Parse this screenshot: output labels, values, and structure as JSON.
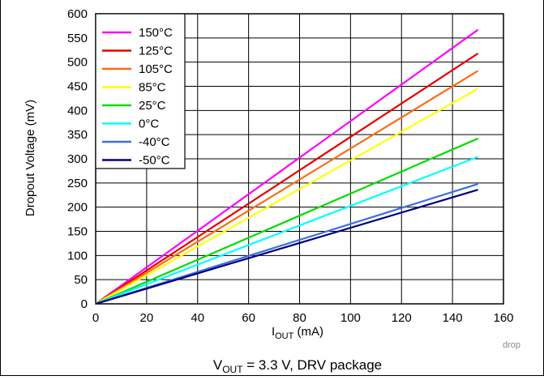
{
  "chart_data": {
    "type": "line",
    "xlabel": {
      "main": "I",
      "sub": "OUT",
      "unit": " (mA)"
    },
    "ylabel": "Dropout Voltage (mV)",
    "xlim": [
      0,
      160
    ],
    "ylim": [
      0,
      600
    ],
    "xticks": [
      0,
      20,
      40,
      60,
      80,
      100,
      120,
      140,
      160
    ],
    "yticks": [
      0,
      50,
      100,
      150,
      200,
      250,
      300,
      350,
      400,
      450,
      500,
      550,
      600
    ],
    "grid": true,
    "legend_position": "top-left",
    "tag": "drop",
    "caption": {
      "main": "V",
      "sub": "OUT",
      "rest": " = 3.3 V, DRV package"
    },
    "series": [
      {
        "name": "150°C",
        "color": "#ff00ff",
        "x": [
          0,
          150
        ],
        "y": [
          0,
          567
        ]
      },
      {
        "name": "125°C",
        "color": "#e60000",
        "x": [
          0,
          150
        ],
        "y": [
          0,
          518
        ]
      },
      {
        "name": "105°C",
        "color": "#ff6a13",
        "x": [
          0,
          150
        ],
        "y": [
          0,
          482
        ]
      },
      {
        "name": "85°C",
        "color": "#ffff00",
        "x": [
          0,
          150
        ],
        "y": [
          0,
          445
        ]
      },
      {
        "name": "25°C",
        "color": "#00dd00",
        "x": [
          0,
          150
        ],
        "y": [
          0,
          342
        ]
      },
      {
        "name": "0°C",
        "color": "#00ffff",
        "x": [
          0,
          150
        ],
        "y": [
          0,
          304
        ]
      },
      {
        "name": "-40°C",
        "color": "#3a6fe0",
        "x": [
          0,
          150
        ],
        "y": [
          0,
          248
        ]
      },
      {
        "name": "-50°C",
        "color": "#000080",
        "x": [
          0,
          150
        ],
        "y": [
          0,
          236
        ]
      }
    ]
  }
}
